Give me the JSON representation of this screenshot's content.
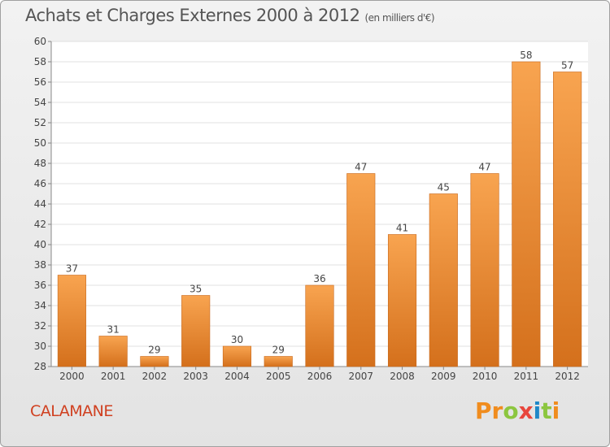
{
  "chart_data": {
    "type": "bar",
    "title": "Achats et Charges Externes 2000 à 2012",
    "unit_note": "(en milliers d'€)",
    "categories": [
      "2000",
      "2001",
      "2002",
      "2003",
      "2004",
      "2005",
      "2006",
      "2007",
      "2008",
      "2009",
      "2010",
      "2011",
      "2012"
    ],
    "values": [
      37,
      31,
      29,
      35,
      30,
      29,
      36,
      47,
      41,
      45,
      47,
      58,
      57
    ],
    "ylim": [
      28,
      60
    ],
    "yticks": [
      28,
      30,
      32,
      34,
      36,
      38,
      40,
      42,
      44,
      46,
      48,
      50,
      52,
      54,
      56,
      58,
      60
    ],
    "grid": true,
    "bar_color_top": "#f8a450",
    "bar_color_bottom": "#d4701c"
  },
  "footer": {
    "city": "CALAMANE",
    "logo_text": "Proxiti",
    "logo_colors": [
      "#f08c1e",
      "#f08c1e",
      "#8cc63f",
      "#e8463c",
      "#1e88c8",
      "#8cc63f",
      "#f08c1e"
    ]
  }
}
